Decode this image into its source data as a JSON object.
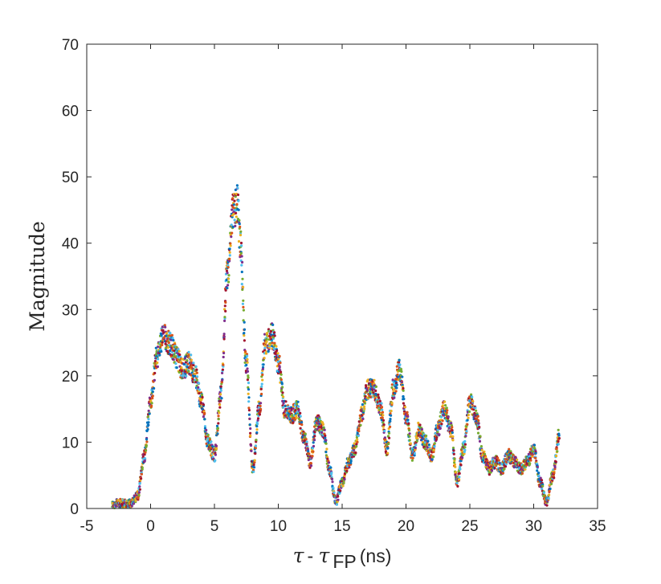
{
  "chart_data": {
    "type": "scatter",
    "title": "",
    "xlabel": {
      "tau": "τ",
      "dash": " - ",
      "tau2": "τ",
      "sub": "FP",
      "units": " (ns)"
    },
    "ylabel": "Magnitude",
    "xlim": [
      -5,
      35
    ],
    "ylim": [
      0,
      70
    ],
    "xticks": [
      -5,
      0,
      5,
      10,
      15,
      20,
      25,
      30,
      35
    ],
    "yticks": [
      0,
      10,
      20,
      30,
      40,
      50,
      60,
      70
    ],
    "xtick_labels": [
      "-5",
      "0",
      "5",
      "10",
      "15",
      "20",
      "25",
      "30",
      "35"
    ],
    "ytick_labels": [
      "0",
      "10",
      "20",
      "30",
      "40",
      "50",
      "60",
      "70"
    ],
    "grid": false,
    "box": true,
    "legend": "none",
    "marker_colors": [
      "#0072bd",
      "#d95319",
      "#edb120",
      "#7e2f8e",
      "#77ac30",
      "#4dbeee",
      "#a2142f"
    ],
    "series": [
      {
        "x": [
          -3,
          -2.5,
          -2,
          -1.5,
          -1,
          -0.5,
          0,
          0.5,
          1,
          1.5,
          2,
          2.5,
          3,
          3.5,
          4,
          4.5,
          5,
          5.5,
          6,
          6.5,
          6.8,
          7,
          7.5,
          8,
          8.5,
          9,
          9.5,
          10,
          10.5,
          11,
          11.5,
          12,
          12.5,
          13,
          13.5,
          14,
          14.5,
          15,
          15.5,
          16,
          16.5,
          17,
          17.5,
          18,
          18.5,
          19,
          19.5,
          20,
          20.5,
          21,
          21.5,
          22,
          22.5,
          23,
          23.5,
          24,
          24.5,
          25,
          25.5,
          26,
          26.5,
          27,
          27.5,
          28,
          28.5,
          29,
          29.5,
          30,
          30.5,
          31,
          31.5,
          32
        ],
        "values": [
          0.5,
          0.8,
          0.8,
          0.8,
          2,
          8,
          16,
          23,
          26,
          25,
          23,
          21,
          22,
          20,
          16,
          10,
          8,
          17,
          35,
          45,
          46,
          40,
          22,
          6,
          15,
          25,
          26,
          22,
          15,
          14,
          15,
          11,
          7,
          13,
          12,
          6,
          1,
          4,
          7,
          9,
          14,
          18,
          18,
          15,
          9,
          18,
          21,
          14,
          8,
          12,
          10,
          8,
          12,
          15,
          12,
          4,
          9,
          16,
          14,
          8,
          6,
          7,
          6,
          8,
          7,
          6,
          7,
          9,
          4,
          1,
          5,
          11
        ]
      }
    ]
  }
}
